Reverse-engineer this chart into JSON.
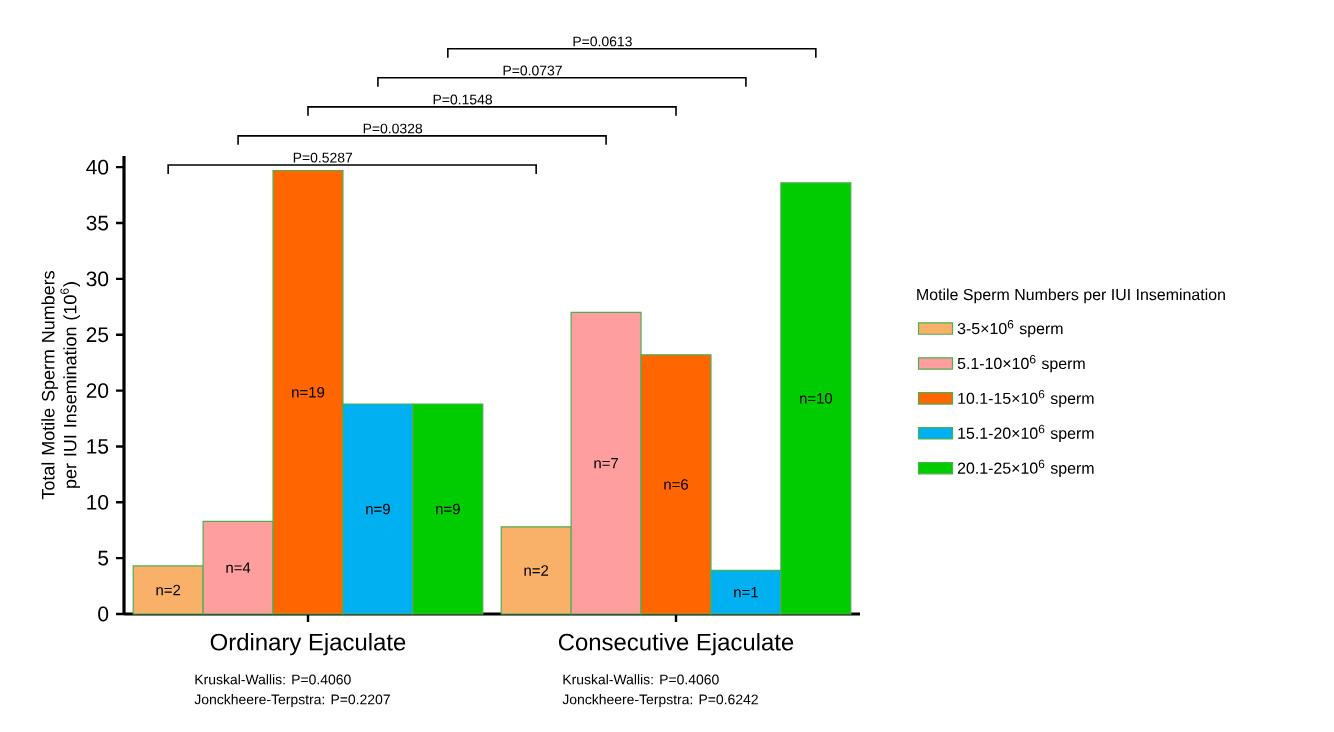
{
  "chart_data": {
    "type": "bar",
    "ylabel": "Total Motile Sperm Numbers per IUI Insemination (10$^{6}$)",
    "legend_title": "Motile Sperm Numbers per IUI Insemination",
    "categories": [
      "Ordinary Ejaculate",
      "Consecutive Ejaculate"
    ],
    "series": [
      {
        "name": "3-5×10$^{6}$ sperm",
        "color": "#f9b16a",
        "values": [
          4.3,
          7.8
        ]
      },
      {
        "name": "5.1-10×10$^{6}$ sperm",
        "color": "#ff9e9e",
        "values": [
          8.3,
          27.0
        ]
      },
      {
        "name": "10.1-15×10$^{6}$ sperm",
        "color": "#ff6600",
        "values": [
          39.7,
          23.2
        ]
      },
      {
        "name": "15.1-20×10$^{6}$ sperm",
        "color": "#00b0f0",
        "values": [
          18.8,
          3.9
        ]
      },
      {
        "name": "20.1-25×10$^{6}$ sperm",
        "color": "#00cc00",
        "values": [
          18.8,
          38.6
        ]
      }
    ],
    "ylim": [
      0,
      41
    ],
    "yticks": [
      0,
      5,
      10,
      15,
      20,
      25,
      30,
      35,
      40
    ],
    "legend": "right",
    "annotations": [
      "P=0.5287",
      "P=0.0328",
      "P=0.1548",
      "P=0.0737",
      "P=0.0613",
      "Kruskal-Wallis: P=0.4060",
      "Jonckheere-Terpstra: P=0.2207",
      "Kruskal-Wallis: P=0.4060",
      "Jonckheere-Terpstra: P=0.6242",
      "n=2",
      "n=4",
      "n=19",
      "n=9",
      "n=9",
      "n=2",
      "n=7",
      "n=6",
      "n=1",
      "n=10"
    ]
  }
}
